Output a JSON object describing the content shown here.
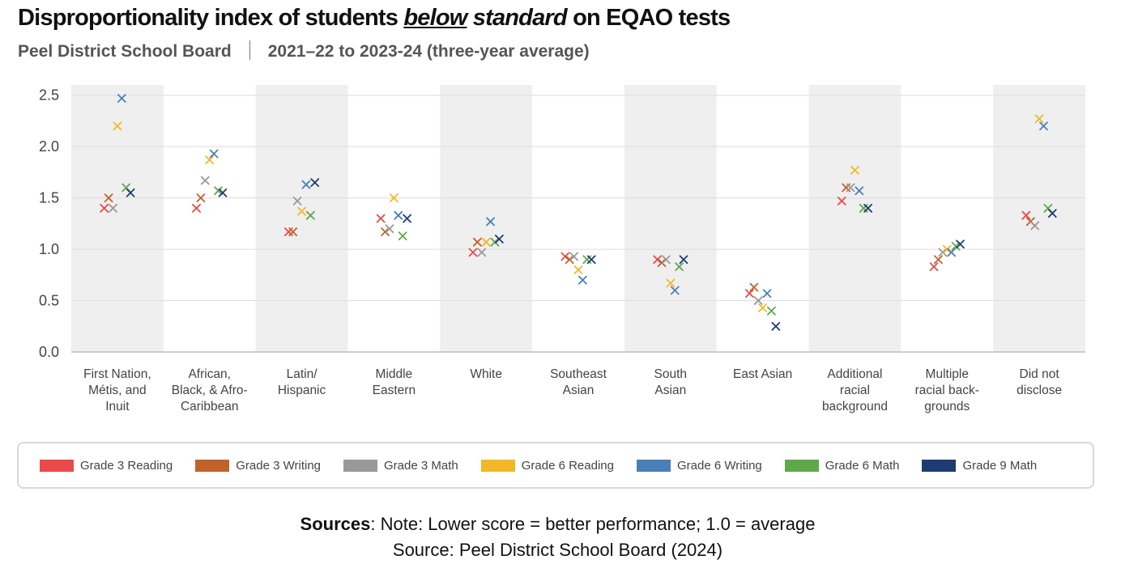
{
  "header": {
    "title_part1": "Disproportionality index of students ",
    "title_em": "below",
    "title_part2": " standard",
    "title_part3": " on EQAO tests",
    "subtitle_org": "Peel District School Board",
    "subtitle_period": "2021–22 to 2023-24 (three-year average)"
  },
  "chart_data": {
    "type": "scatter",
    "title": "Disproportionality index of students below standard on EQAO tests",
    "xlabel": "",
    "ylabel": "",
    "ylim": [
      0,
      2.6
    ],
    "yticks": [
      "0.0",
      "0.5",
      "1.0",
      "1.5",
      "2.0",
      "2.5"
    ],
    "grid": true,
    "legend_position": "bottom",
    "categories": [
      [
        "First Nation,",
        "Métis, and",
        "Inuit"
      ],
      [
        "African,",
        "Black, & Afro-",
        "Caribbean"
      ],
      [
        "Latin/",
        "Hispanic"
      ],
      [
        "Middle",
        "Eastern"
      ],
      [
        "White"
      ],
      [
        "Southeast",
        "Asian"
      ],
      [
        "South",
        "Asian"
      ],
      [
        "East Asian"
      ],
      [
        "Additional",
        "racial",
        "background"
      ],
      [
        "Multiple",
        "racial back-",
        "grounds"
      ],
      [
        "Did not",
        "disclose"
      ]
    ],
    "series": [
      {
        "name": "Grade 3 Reading",
        "color": "#ea4a4a",
        "values": [
          1.4,
          1.4,
          1.17,
          1.3,
          0.97,
          0.93,
          0.9,
          0.57,
          1.47,
          0.83,
          1.33
        ]
      },
      {
        "name": "Grade 3 Writing",
        "color": "#c0622a",
        "values": [
          1.5,
          1.5,
          1.17,
          1.17,
          1.07,
          0.9,
          0.87,
          0.63,
          1.6,
          0.9,
          1.27
        ]
      },
      {
        "name": "Grade 3 Math",
        "color": "#999999",
        "values": [
          1.4,
          1.67,
          1.47,
          1.2,
          0.97,
          0.93,
          0.9,
          0.5,
          1.6,
          0.97,
          1.23
        ]
      },
      {
        "name": "Grade 6 Reading",
        "color": "#f3b827",
        "values": [
          2.2,
          1.87,
          1.37,
          1.5,
          1.07,
          0.8,
          0.67,
          0.43,
          1.77,
          1.0,
          2.27
        ]
      },
      {
        "name": "Grade 6 Writing",
        "color": "#4a80b8",
        "values": [
          2.47,
          1.93,
          1.63,
          1.33,
          1.27,
          0.7,
          0.6,
          0.57,
          1.57,
          0.97,
          2.2
        ]
      },
      {
        "name": "Grade 6 Math",
        "color": "#5fa84a",
        "values": [
          1.6,
          1.57,
          1.33,
          1.13,
          1.07,
          0.9,
          0.83,
          0.4,
          1.4,
          1.03,
          1.4
        ]
      },
      {
        "name": "Grade 9 Math",
        "color": "#1f3b73",
        "values": [
          1.55,
          1.55,
          1.65,
          1.3,
          1.1,
          0.9,
          0.9,
          0.25,
          1.4,
          1.05,
          1.35
        ]
      }
    ]
  },
  "legend": {
    "items": [
      {
        "label": "Grade 3 Reading",
        "color": "#ea4a4a"
      },
      {
        "label": "Grade 3 Writing",
        "color": "#c0622a"
      },
      {
        "label": "Grade 3 Math",
        "color": "#999999"
      },
      {
        "label": "Grade 6 Reading",
        "color": "#f3b827"
      },
      {
        "label": "Grade 6 Writing",
        "color": "#4a80b8"
      },
      {
        "label": "Grade 6 Math",
        "color": "#5fa84a"
      },
      {
        "label": "Grade 9 Math",
        "color": "#1f3b73"
      }
    ]
  },
  "notes": {
    "sources_label": "Sources",
    "note_text": ": Note: Lower score = better performance; 1.0 = average",
    "source_text": "Source: Peel District School Board (2024)"
  }
}
